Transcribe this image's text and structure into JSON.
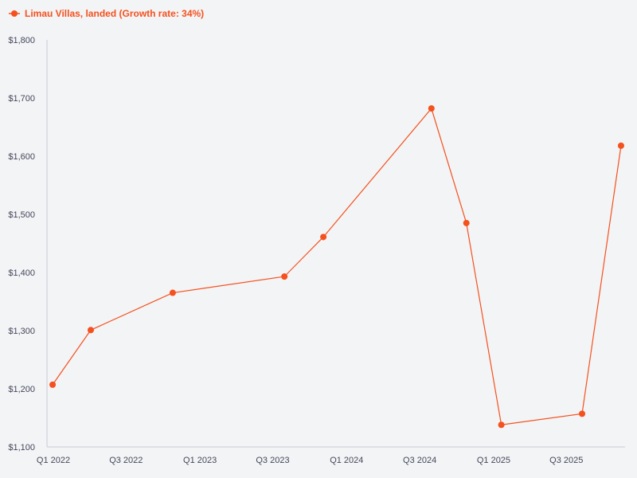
{
  "legend": {
    "label": "Limau Villas, landed (Growth rate: 34%)"
  },
  "colors": {
    "accent": "#f4511e",
    "background": "#f3f4f6",
    "axis": "#c8cad6",
    "tick_text": "#44475a"
  },
  "chart_data": {
    "type": "line",
    "title": "",
    "xlabel": "",
    "ylabel": "",
    "legend_position": "top-left",
    "grid": false,
    "x_ticks": [
      "Q1 2022",
      "Q3 2022",
      "Q1 2023",
      "Q3 2023",
      "Q1 2024",
      "Q3 2024",
      "Q1 2025",
      "Q3 2025"
    ],
    "y_ticks": [
      "$1,100",
      "$1,200",
      "$1,300",
      "$1,400",
      "$1,500",
      "$1,600",
      "$1,700",
      "$1,800"
    ],
    "ylim": [
      1100,
      1800
    ],
    "xlim": [
      "2022-01-01",
      "2025-12-10"
    ],
    "series": [
      {
        "name": "Limau Villas, landed (Growth rate: 34%)",
        "points": [
          {
            "date": "2022-01-15",
            "value": 1207
          },
          {
            "date": "2022-04-20",
            "value": 1301
          },
          {
            "date": "2022-11-10",
            "value": 1365
          },
          {
            "date": "2023-08-15",
            "value": 1393
          },
          {
            "date": "2023-11-20",
            "value": 1461
          },
          {
            "date": "2024-08-15",
            "value": 1682
          },
          {
            "date": "2024-11-10",
            "value": 1485
          },
          {
            "date": "2025-02-05",
            "value": 1138
          },
          {
            "date": "2025-08-25",
            "value": 1157
          },
          {
            "date": "2025-11-30",
            "value": 1618
          }
        ]
      }
    ]
  }
}
